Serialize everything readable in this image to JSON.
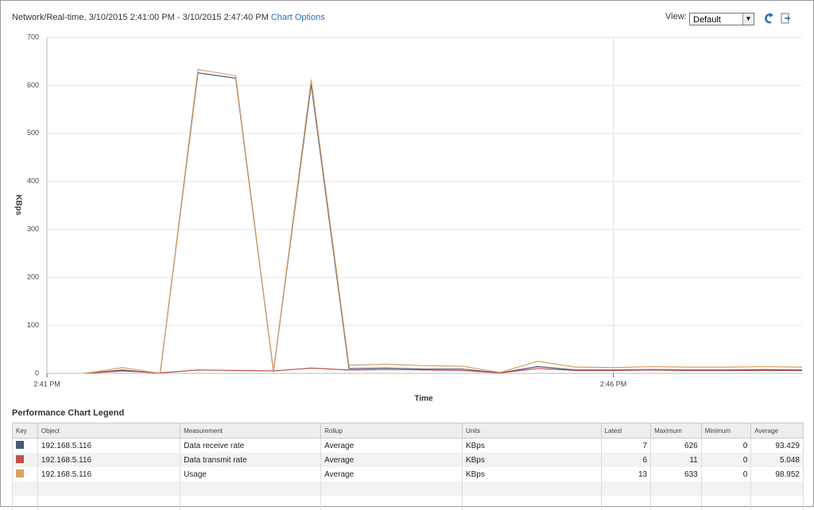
{
  "header": {
    "title": "Network/Real-time, 3/10/2015 2:41:00 PM - 3/10/2015 2:47:40 PM",
    "chart_options": "Chart Options",
    "view_label": "View:",
    "view_value": "Default"
  },
  "chart_data": {
    "type": "line",
    "y_label": "KBps",
    "x_label": "Time",
    "categories": [
      "2:41 PM",
      null,
      null,
      null,
      null,
      null,
      null,
      null,
      null,
      null,
      null,
      null,
      null,
      null,
      null,
      "2:46 PM",
      null,
      null,
      null,
      null,
      null
    ],
    "series": [
      {
        "name": "Data receive rate",
        "color": "#4b5878",
        "values": [
          null,
          0,
          7,
          0,
          626,
          615,
          4,
          602,
          10,
          11,
          9,
          9,
          1,
          14,
          7,
          7,
          8,
          7,
          7,
          8,
          7
        ]
      },
      {
        "name": "Data transmit rate",
        "color": "#c0504d",
        "values": [
          null,
          0,
          5,
          1,
          7,
          6,
          5,
          11,
          7,
          8,
          7,
          6,
          1,
          10,
          6,
          6,
          7,
          6,
          6,
          6,
          6
        ]
      },
      {
        "name": "Usage",
        "color": "#d9a066",
        "values": [
          null,
          0,
          12,
          0,
          633,
          620,
          5,
          612,
          17,
          19,
          16,
          15,
          2,
          25,
          13,
          12,
          14,
          13,
          13,
          14,
          13
        ]
      }
    ],
    "ylim": [
      0,
      700
    ],
    "yticks": [
      0,
      100,
      200,
      300,
      400,
      500,
      600,
      700
    ],
    "grid": true
  },
  "legend_table": {
    "title": "Performance Chart Legend",
    "columns": [
      "Key",
      "Object",
      "Measurement",
      "Rollup",
      "Units",
      "Latest",
      "Maximum",
      "Minimum",
      "Average"
    ],
    "rows": [
      {
        "object": "192.168.5.116",
        "rollup": "Average",
        "units": "KBps",
        "latest": 7,
        "maximum": 626,
        "minimum": 0,
        "average": 93.429
      },
      {
        "object": "192.168.5.116",
        "rollup": "Average",
        "units": "KBps",
        "latest": 6,
        "maximum": 11,
        "minimum": 0,
        "average": 5.048
      },
      {
        "object": "192.168.5.116",
        "rollup": "Average",
        "units": "KBps",
        "latest": 13,
        "maximum": 633,
        "minimum": 0,
        "average": 98.952
      }
    ]
  }
}
